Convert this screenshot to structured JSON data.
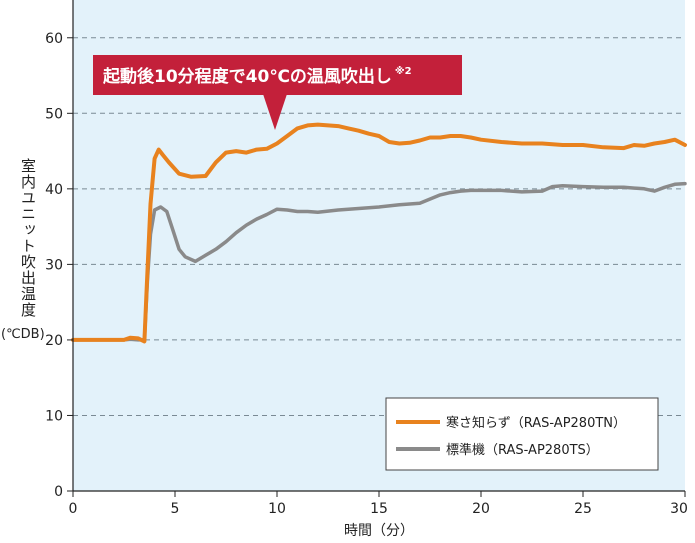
{
  "chart_data": {
    "type": "line",
    "xlabel": "時間（分）",
    "ylabel": "室内ユニット吹出温度",
    "yunit": "(℃DB)",
    "xlim": [
      0,
      30
    ],
    "ylim": [
      0,
      65
    ],
    "xticks": [
      0,
      5,
      10,
      15,
      20,
      25,
      30
    ],
    "yticks": [
      0,
      10,
      20,
      30,
      40,
      50,
      60
    ],
    "grid": "horizontal-dashed",
    "background_color": "#E3F2FA",
    "legend_position": "bottom-right",
    "annotation": {
      "text": "起動後10分程度で40℃の温風吹出し",
      "note": "※2",
      "x": 10,
      "y": 45,
      "color": "#C3203A"
    },
    "series": [
      {
        "name": "寒さ知らず（RAS-AP280TN）",
        "color": "#E8821E",
        "x": [
          0,
          2.5,
          2.8,
          3.2,
          3.5,
          3.6,
          3.8,
          4.0,
          4.2,
          4.4,
          4.7,
          5.2,
          5.8,
          6.5,
          7.0,
          7.5,
          8.0,
          8.5,
          9.0,
          9.5,
          10.0,
          10.5,
          11.0,
          11.5,
          12.0,
          12.5,
          13.0,
          13.5,
          14.0,
          14.5,
          15.0,
          15.5,
          16.0,
          16.5,
          17.0,
          17.5,
          18.0,
          18.5,
          19.0,
          19.5,
          20.0,
          21.0,
          22.0,
          23.0,
          24.0,
          25.0,
          26.0,
          27.0,
          27.5,
          28.0,
          28.5,
          29.0,
          29.5,
          30.0
        ],
        "values": [
          20,
          20,
          20.3,
          20.2,
          19.8,
          26,
          38,
          44,
          45.2,
          44.5,
          43.5,
          42,
          41.6,
          41.7,
          43.5,
          44.8,
          45,
          44.8,
          45.2,
          45.3,
          46,
          47,
          48,
          48.4,
          48.5,
          48.4,
          48.3,
          48,
          47.7,
          47.3,
          47,
          46.2,
          46,
          46.1,
          46.4,
          46.8,
          46.8,
          47,
          47,
          46.8,
          46.5,
          46.2,
          46,
          46,
          45.8,
          45.8,
          45.5,
          45.4,
          45.8,
          45.7,
          46,
          46.2,
          46.5,
          45.8
        ]
      },
      {
        "name": "標準機（RAS-AP280TS）",
        "color": "#8A8A8A",
        "x": [
          0,
          2.5,
          2.8,
          3.2,
          3.5,
          3.65,
          3.8,
          4.0,
          4.3,
          4.6,
          4.9,
          5.2,
          5.5,
          6.0,
          6.5,
          7.0,
          7.5,
          8.0,
          8.5,
          9.0,
          9.5,
          10.0,
          10.5,
          11.0,
          11.5,
          12.0,
          13.0,
          14.0,
          15.0,
          16.0,
          17.0,
          18.0,
          18.5,
          19.0,
          19.5,
          20.0,
          21.0,
          22.0,
          23.0,
          23.5,
          24.0,
          25.0,
          26.0,
          27.0,
          28.0,
          28.5,
          29.0,
          29.5,
          30.0
        ],
        "values": [
          20,
          20,
          20.1,
          20.0,
          20.0,
          28,
          34,
          37.2,
          37.6,
          37.0,
          34.5,
          32.0,
          31.0,
          30.4,
          31.2,
          32.0,
          33.0,
          34.2,
          35.2,
          36.0,
          36.6,
          37.3,
          37.2,
          37.0,
          37.0,
          36.9,
          37.2,
          37.4,
          37.6,
          37.9,
          38.1,
          39.2,
          39.5,
          39.7,
          39.8,
          39.8,
          39.8,
          39.6,
          39.7,
          40.3,
          40.4,
          40.3,
          40.2,
          40.2,
          40.0,
          39.7,
          40.2,
          40.6,
          40.7
        ]
      }
    ]
  }
}
